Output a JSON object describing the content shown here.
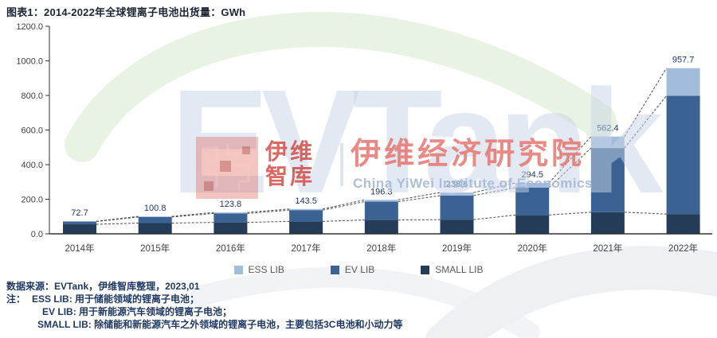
{
  "title": "图表1：2014-2022年全球锂离子电池出货量：GWh",
  "watermark": {
    "brand_text": "EVTank",
    "logo_text_line1": "伊维",
    "logo_text_line2": "智库",
    "institute_cn": "伊维经济研究院",
    "institute_en": "China YiWei Institute of Economics"
  },
  "footer": {
    "source": "数据来源：EVTank，伊维智库整理，2023,01",
    "note_label": "注：",
    "notes": [
      "ESS LIB: 用于储能领域的锂离子电池；",
      "EV LIB: 用于新能源汽车领域的锂离子电池；",
      "SMALL LIB: 除储能和新能源汽车之外领域的锂离子电池，主要包括3C电池和小动力等"
    ]
  },
  "chart_data": {
    "type": "bar",
    "stacked": true,
    "title": "图表1：2014-2022年全球锂离子电池出货量：GWh",
    "xlabel": "",
    "ylabel": "GWh",
    "ylim": [
      0,
      1200
    ],
    "ytick_step": 200,
    "ytick_labels": [
      "0.0",
      "200.0",
      "400.0",
      "600.0",
      "800.0",
      "1000.0",
      "1200.0"
    ],
    "grid": false,
    "legend_position": "bottom",
    "categories": [
      "2014年",
      "2015年",
      "2016年",
      "2017年",
      "2018年",
      "2019年",
      "2020年",
      "2021年",
      "2022年"
    ],
    "series": [
      {
        "name": "SMALL LIB",
        "color": "#253c59",
        "values": [
          55.0,
          62.0,
          66.0,
          72.0,
          80.0,
          82.0,
          109.0,
          125.1,
          114.2
        ]
      },
      {
        "name": "EV LIB",
        "color": "#3a6394",
        "values": [
          16.0,
          35.0,
          52.0,
          65.0,
          106.0,
          139.0,
          158.2,
          371.0,
          684.2
        ]
      },
      {
        "name": "ESS LIB",
        "color": "#a3bcdc",
        "values": [
          1.7,
          3.8,
          5.8,
          6.5,
          10.3,
          17.6,
          27.3,
          66.3,
          159.3
        ]
      }
    ],
    "stack_order_bottom_to_top": [
      "SMALL LIB",
      "EV LIB",
      "ESS LIB"
    ],
    "totals": [
      72.7,
      100.8,
      123.8,
      143.5,
      196.3,
      238.6,
      294.5,
      562.4,
      957.7
    ],
    "total_labels": [
      "72.7",
      "100.8",
      "123.8",
      "143.5",
      "196.3",
      "238.6",
      "294.5",
      "562.4",
      "957.7"
    ],
    "series_lines": "dashed connectors between adjacent bars at each cumulative stack boundary",
    "colors": {
      "data_label": "#1f3864",
      "axis_text": "#404040",
      "axis_line": "#333333",
      "dashed_line": "#4d4d4d"
    }
  }
}
